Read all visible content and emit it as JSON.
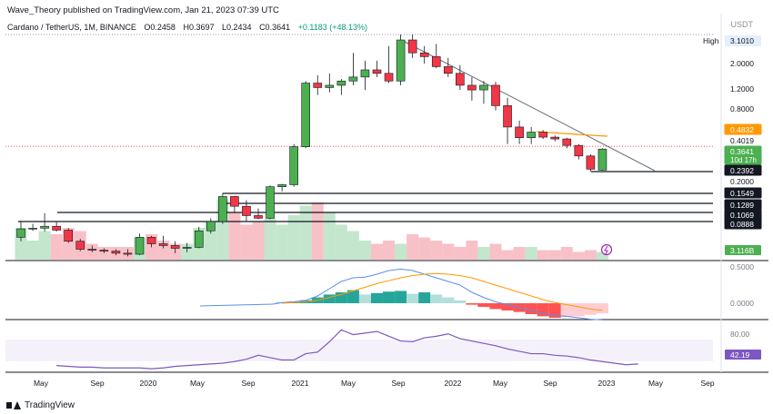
{
  "header": {
    "publisher_line": "Wave_Theory published on TradingView.com, Jan 21, 2023 07:39 UTC",
    "symbol": "Cardano / TetherUS, 1M, BINANCE",
    "open": "O0.2458",
    "high": "H0.3697",
    "low": "L0.2434",
    "close": "C0.3641",
    "change": "+0.1183 (+48.13%)"
  },
  "quote_currency": "USDT",
  "brand": "TradingView",
  "colors": {
    "up": "#26a69a",
    "up_candle": "#4caf50",
    "down": "#f23645",
    "ma_orange": "#ff9800",
    "trend_line": "#6b6f79",
    "rsi": "#7e57c2",
    "macd_blue": "#5b8def"
  },
  "chart_data": {
    "type": "candlestick",
    "interval": "1M",
    "price_scale": "log",
    "high_label": "High",
    "high_value": "3.1010",
    "price_ticks": [
      "2.0000",
      "1.2000",
      "0.8000",
      "0.2000"
    ],
    "price_tags": [
      {
        "value": "0.4832",
        "bg": "#ff9800",
        "fg": "#ffffff",
        "border": "#ff9800"
      },
      {
        "value": "0.4019",
        "bg": "#ffffff",
        "fg": "#131722",
        "border": "#ffffff"
      },
      {
        "value": "0.3641",
        "sub": "10d 17h",
        "bg": "#4caf50",
        "fg": "#ffffff",
        "border": "#4caf50"
      },
      {
        "value": "0.2392",
        "bg": "#131722",
        "fg": "#ffffff",
        "border": "#131722"
      },
      {
        "value": "0.1549",
        "bg": "#131722",
        "fg": "#ffffff",
        "border": "#131722"
      },
      {
        "value": "0.1289",
        "bg": "#131722",
        "fg": "#ffffff",
        "border": "#131722"
      },
      {
        "value": "0.1069",
        "bg": "#131722",
        "fg": "#ffffff",
        "border": "#131722"
      },
      {
        "value": "0.0888",
        "bg": "#131722",
        "fg": "#ffffff",
        "border": "#131722"
      }
    ],
    "support_levels": [
      0.2392,
      0.1549,
      0.1289,
      0.1069,
      0.0888
    ],
    "ma_value": 0.4832,
    "volume_label": "3.116B",
    "x_labels": [
      "May",
      "Sep",
      "2020",
      "May",
      "Sep",
      "2021",
      "May",
      "Sep",
      "2022",
      "May",
      "Sep",
      "2023",
      "May",
      "Sep"
    ],
    "candles": [
      {
        "t": "2019-04",
        "o": 0.07,
        "h": 0.095,
        "l": 0.065,
        "c": 0.082
      },
      {
        "t": "2019-05",
        "o": 0.082,
        "h": 0.09,
        "l": 0.079,
        "c": 0.083
      },
      {
        "t": "2019-06",
        "o": 0.083,
        "h": 0.11,
        "l": 0.078,
        "c": 0.086
      },
      {
        "t": "2019-07",
        "o": 0.086,
        "h": 0.093,
        "l": 0.078,
        "c": 0.08
      },
      {
        "t": "2019-08",
        "o": 0.08,
        "h": 0.083,
        "l": 0.063,
        "c": 0.065
      },
      {
        "t": "2019-09",
        "o": 0.065,
        "h": 0.068,
        "l": 0.054,
        "c": 0.056
      },
      {
        "t": "2019-10",
        "o": 0.056,
        "h": 0.06,
        "l": 0.053,
        "c": 0.055
      },
      {
        "t": "2019-11",
        "o": 0.055,
        "h": 0.057,
        "l": 0.052,
        "c": 0.054
      },
      {
        "t": "2019-12",
        "o": 0.054,
        "h": 0.056,
        "l": 0.05,
        "c": 0.052
      },
      {
        "t": "2020-01",
        "o": 0.052,
        "h": 0.056,
        "l": 0.049,
        "c": 0.051
      },
      {
        "t": "2020-02",
        "o": 0.051,
        "h": 0.075,
        "l": 0.05,
        "c": 0.07
      },
      {
        "t": "2020-03",
        "o": 0.07,
        "h": 0.072,
        "l": 0.058,
        "c": 0.062
      },
      {
        "t": "2020-04",
        "o": 0.062,
        "h": 0.072,
        "l": 0.057,
        "c": 0.06
      },
      {
        "t": "2020-05",
        "o": 0.06,
        "h": 0.065,
        "l": 0.052,
        "c": 0.057
      },
      {
        "t": "2020-06",
        "o": 0.057,
        "h": 0.063,
        "l": 0.053,
        "c": 0.058
      },
      {
        "t": "2020-07",
        "o": 0.058,
        "h": 0.085,
        "l": 0.057,
        "c": 0.079
      },
      {
        "t": "2020-08",
        "o": 0.079,
        "h": 0.1,
        "l": 0.075,
        "c": 0.094
      },
      {
        "t": "2020-09",
        "o": 0.094,
        "h": 0.16,
        "l": 0.09,
        "c": 0.15
      },
      {
        "t": "2020-10",
        "o": 0.15,
        "h": 0.152,
        "l": 0.11,
        "c": 0.125
      },
      {
        "t": "2020-11",
        "o": 0.125,
        "h": 0.14,
        "l": 0.095,
        "c": 0.105
      },
      {
        "t": "2020-12",
        "o": 0.105,
        "h": 0.12,
        "l": 0.098,
        "c": 0.1
      },
      {
        "t": "2021-01",
        "o": 0.1,
        "h": 0.185,
        "l": 0.098,
        "c": 0.18
      },
      {
        "t": "2021-02",
        "o": 0.18,
        "h": 0.19,
        "l": 0.165,
        "c": 0.187
      },
      {
        "t": "2021-03",
        "o": 0.187,
        "h": 0.4,
        "l": 0.18,
        "c": 0.38
      },
      {
        "t": "2021-04",
        "o": 0.38,
        "h": 1.3,
        "l": 0.37,
        "c": 1.25
      },
      {
        "t": "2021-05",
        "o": 1.25,
        "h": 1.45,
        "l": 1.0,
        "c": 1.15
      },
      {
        "t": "2021-06",
        "o": 1.15,
        "h": 1.5,
        "l": 1.05,
        "c": 1.2
      },
      {
        "t": "2021-07",
        "o": 1.2,
        "h": 1.35,
        "l": 1.0,
        "c": 1.3
      },
      {
        "t": "2021-08",
        "o": 1.3,
        "h": 2.2,
        "l": 1.2,
        "c": 1.4
      },
      {
        "t": "2021-09",
        "o": 1.4,
        "h": 1.9,
        "l": 1.1,
        "c": 1.6
      },
      {
        "t": "2021-10",
        "o": 1.6,
        "h": 1.9,
        "l": 1.4,
        "c": 1.5
      },
      {
        "t": "2021-11",
        "o": 1.5,
        "h": 2.5,
        "l": 1.25,
        "c": 1.3
      },
      {
        "t": "2021-12",
        "o": 1.3,
        "h": 3.1,
        "l": 1.2,
        "c": 2.8
      },
      {
        "t": "2022-01",
        "o": 2.8,
        "h": 3.101,
        "l": 2.0,
        "c": 2.2
      },
      {
        "t": "2022-02",
        "o": 2.2,
        "h": 2.5,
        "l": 1.8,
        "c": 2.05
      },
      {
        "t": "2022-03",
        "o": 2.05,
        "h": 2.6,
        "l": 1.65,
        "c": 1.7
      },
      {
        "t": "2022-04",
        "o": 1.7,
        "h": 2.0,
        "l": 1.4,
        "c": 1.5
      },
      {
        "t": "2022-05",
        "o": 1.5,
        "h": 1.75,
        "l": 1.1,
        "c": 1.2
      },
      {
        "t": "2022-06",
        "o": 1.2,
        "h": 1.4,
        "l": 0.9,
        "c": 1.1
      },
      {
        "t": "2022-07",
        "o": 1.1,
        "h": 1.3,
        "l": 0.85,
        "c": 1.2
      },
      {
        "t": "2022-08",
        "o": 1.2,
        "h": 1.28,
        "l": 0.75,
        "c": 0.82
      },
      {
        "t": "2022-09",
        "o": 0.82,
        "h": 0.95,
        "l": 0.4,
        "c": 0.55
      },
      {
        "t": "2022-10",
        "o": 0.55,
        "h": 0.62,
        "l": 0.4,
        "c": 0.45
      },
      {
        "t": "2022-11",
        "o": 0.45,
        "h": 0.55,
        "l": 0.4,
        "c": 0.5
      },
      {
        "t": "2022-12",
        "o": 0.5,
        "h": 0.52,
        "l": 0.44,
        "c": 0.455
      },
      {
        "t": "2023-01",
        "o": 0.455,
        "h": 0.47,
        "l": 0.42,
        "c": 0.44
      },
      {
        "t": "2023-02",
        "o": 0.44,
        "h": 0.45,
        "l": 0.37,
        "c": 0.39
      },
      {
        "t": "2023-03",
        "o": 0.39,
        "h": 0.4,
        "l": 0.3,
        "c": 0.32
      },
      {
        "t": "2023-04",
        "o": 0.32,
        "h": 0.33,
        "l": 0.24,
        "c": 0.25
      },
      {
        "t": "2023-05",
        "o": 0.2458,
        "h": 0.3697,
        "l": 0.2434,
        "c": 0.3641
      }
    ],
    "volume": [
      0.5,
      0.3,
      0.45,
      0.4,
      0.5,
      0.45,
      0.25,
      0.2,
      0.2,
      0.2,
      0.35,
      0.4,
      0.3,
      0.25,
      0.25,
      0.5,
      0.6,
      0.95,
      0.75,
      0.55,
      0.6,
      0.65,
      0.55,
      0.7,
      0.85,
      0.9,
      0.75,
      0.55,
      0.45,
      0.3,
      0.25,
      0.3,
      0.25,
      0.4,
      0.35,
      0.3,
      0.25,
      0.2,
      0.3,
      0.2,
      0.25,
      0.15,
      0.2,
      0.2,
      0.15,
      0.15,
      0.2,
      0.12,
      0.15,
      0.12
    ],
    "macd": {
      "axis_ticks": [
        "0.5000",
        "0.0000"
      ],
      "hist": [
        0,
        0,
        0,
        0,
        0,
        0,
        0,
        0,
        0,
        0,
        0,
        0,
        0,
        0,
        0,
        0,
        0,
        0,
        0,
        0,
        0,
        0,
        0.01,
        0.02,
        0.04,
        0.08,
        0.12,
        0.15,
        0.18,
        0.12,
        0.14,
        0.16,
        0.17,
        0.13,
        0.15,
        0.12,
        0.08,
        0.04,
        -0.02,
        -0.05,
        -0.08,
        -0.1,
        -0.12,
        -0.15,
        -0.18,
        -0.2,
        -0.19,
        -0.18,
        -0.16,
        -0.14
      ],
      "macd": [
        0,
        0,
        0,
        0,
        0,
        0,
        0,
        0,
        0,
        0,
        0,
        0,
        0,
        0,
        0,
        0,
        0,
        0,
        0,
        0,
        0,
        0,
        0.01,
        0.02,
        0.04,
        0.1,
        0.2,
        0.3,
        0.35,
        0.36,
        0.4,
        0.45,
        0.47,
        0.45,
        0.4,
        0.35,
        0.3,
        0.25,
        0.15,
        0.08,
        0.02,
        -0.02,
        -0.06,
        -0.1,
        -0.14,
        -0.17,
        -0.18,
        -0.2,
        -0.22,
        -0.23
      ],
      "signal": [
        0,
        0,
        0,
        0,
        0,
        0,
        0,
        0,
        0,
        0,
        0,
        0,
        0,
        0,
        0,
        0,
        0,
        0,
        0,
        0,
        0,
        0,
        0,
        0.01,
        0.02,
        0.04,
        0.08,
        0.12,
        0.17,
        0.22,
        0.27,
        0.31,
        0.35,
        0.38,
        0.4,
        0.41,
        0.4,
        0.38,
        0.35,
        0.3,
        0.25,
        0.2,
        0.15,
        0.1,
        0.05,
        0.01,
        -0.02,
        -0.05,
        -0.08,
        -0.1
      ]
    },
    "rsi": {
      "axis_tick": "80.00",
      "current": "42.19",
      "values": [
        45,
        44,
        43,
        43,
        42,
        42,
        42,
        42,
        41,
        42,
        44,
        45,
        46,
        47,
        48,
        50,
        53,
        58,
        55,
        52,
        52,
        60,
        62,
        75,
        90,
        84,
        86,
        88,
        82,
        76,
        75,
        80,
        82,
        85,
        79,
        76,
        73,
        70,
        66,
        63,
        60,
        60,
        58,
        57,
        55,
        52,
        50,
        48,
        46,
        47
      ]
    }
  }
}
